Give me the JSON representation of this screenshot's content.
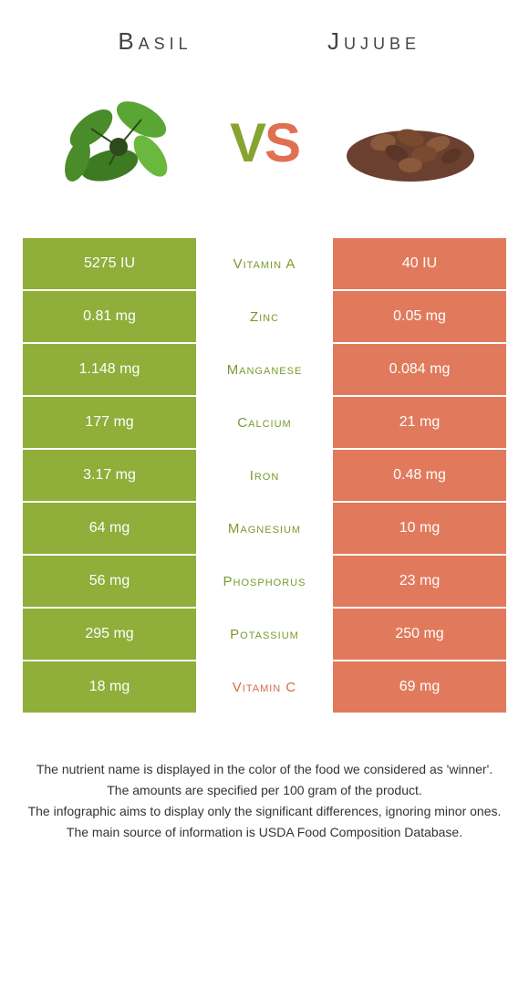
{
  "headers": {
    "left": "Basil",
    "right": "Jujube"
  },
  "vs": {
    "v": "V",
    "s": "S"
  },
  "colors": {
    "left_bg": "#8fae3a",
    "right_bg": "#e17a5c",
    "left_text": "#7a9a2e",
    "right_text": "#d96846",
    "white": "#ffffff"
  },
  "rows": [
    {
      "left": "5275 IU",
      "mid": "Vitamin A",
      "right": "40 IU",
      "winner": "left"
    },
    {
      "left": "0.81 mg",
      "mid": "Zinc",
      "right": "0.05 mg",
      "winner": "left"
    },
    {
      "left": "1.148 mg",
      "mid": "Manganese",
      "right": "0.084 mg",
      "winner": "left"
    },
    {
      "left": "177 mg",
      "mid": "Calcium",
      "right": "21 mg",
      "winner": "left"
    },
    {
      "left": "3.17 mg",
      "mid": "Iron",
      "right": "0.48 mg",
      "winner": "left"
    },
    {
      "left": "64 mg",
      "mid": "Magnesium",
      "right": "10 mg",
      "winner": "left"
    },
    {
      "left": "56 mg",
      "mid": "Phosphorus",
      "right": "23 mg",
      "winner": "left"
    },
    {
      "left": "295 mg",
      "mid": "Potassium",
      "right": "250 mg",
      "winner": "left"
    },
    {
      "left": "18 mg",
      "mid": "Vitamin C",
      "right": "69 mg",
      "winner": "right"
    }
  ],
  "footer": {
    "l1": "The nutrient name is displayed in the color of the food we considered as 'winner'.",
    "l2": "The amounts are specified per 100 gram of the product.",
    "l3": "The infographic aims to display only the significant differences, ignoring minor ones.",
    "l4": "The main source of information is USDA Food Composition Database."
  }
}
